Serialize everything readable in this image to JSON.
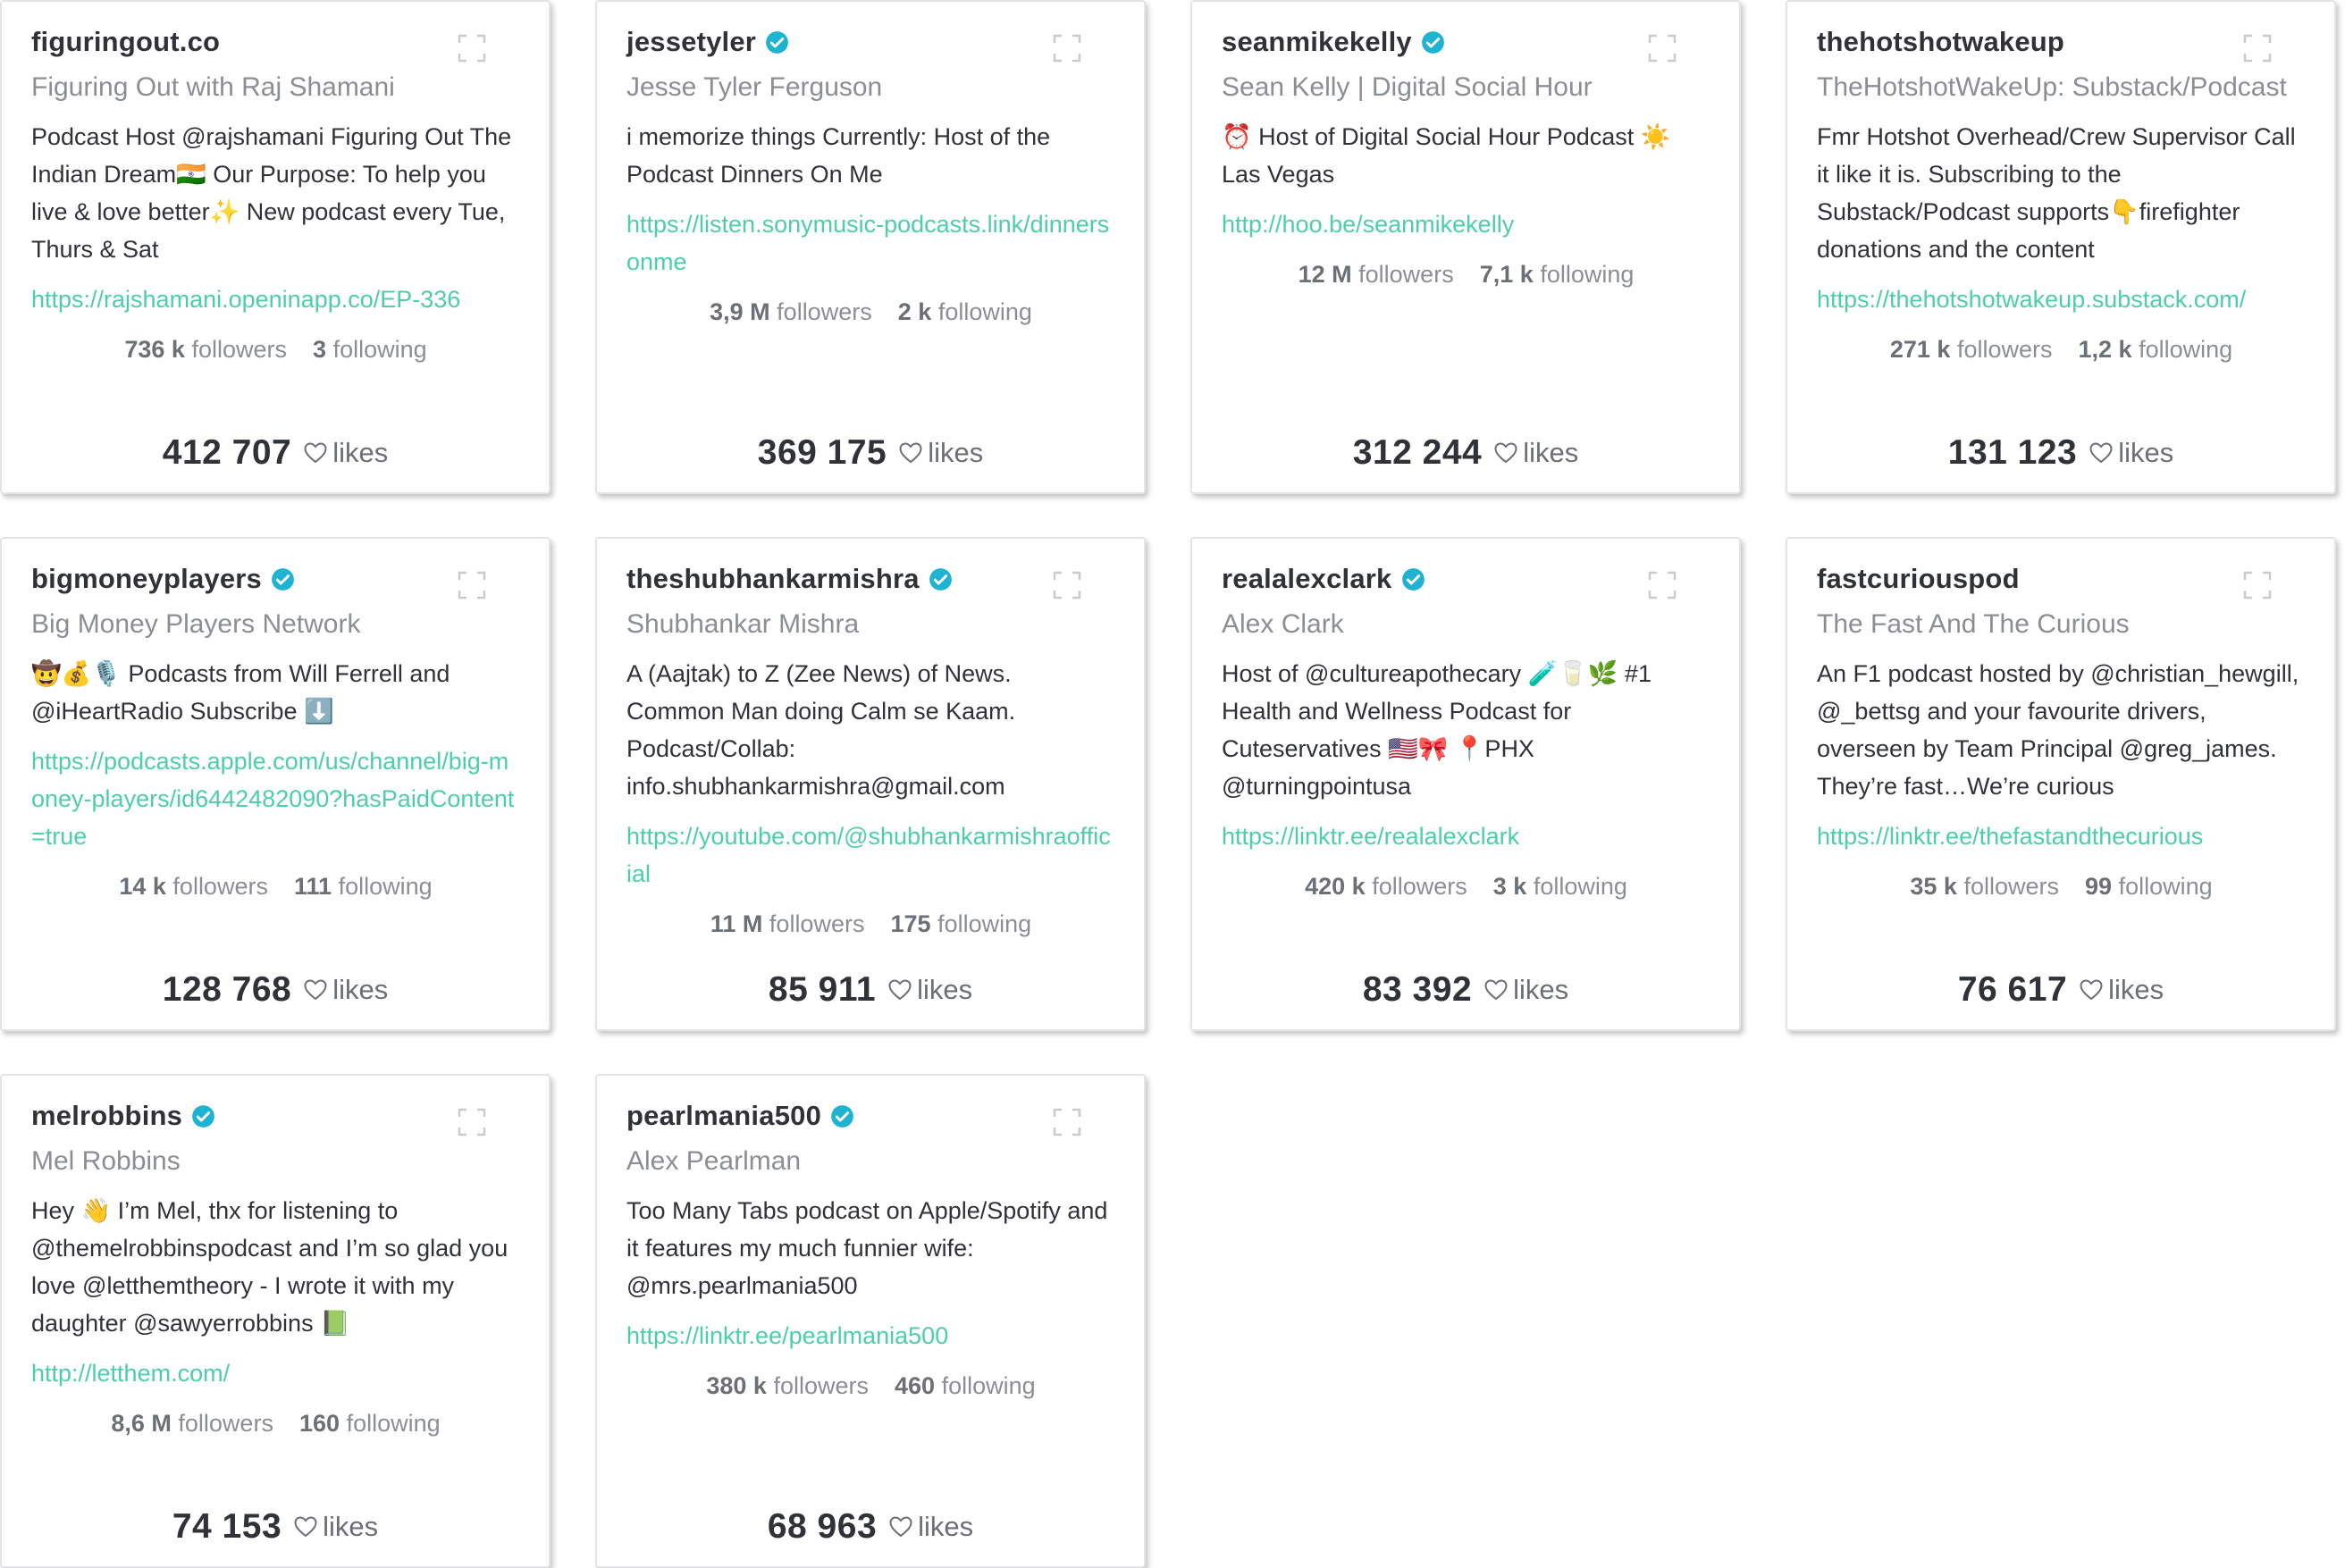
{
  "cards": [
    {
      "handle": "figuringout.co",
      "verified": false,
      "name": "Figuring Out with Raj Shamani",
      "bio": "Podcast Host @rajshamani Figuring Out The Indian Dream🇮🇳 Our Purpose: To help you live & love better✨ New podcast every Tue, Thurs & Sat",
      "link": "https://rajshamani.openinapp.co/EP-336",
      "followers": "736 k",
      "following": "3",
      "likes": "412 707"
    },
    {
      "handle": "jessetyler",
      "verified": true,
      "name": "Jesse Tyler Ferguson",
      "bio": "i memorize things Currently: Host of the Podcast Dinners On Me",
      "link": "https://listen.sonymusic-podcasts.link/dinnersonme",
      "followers": "3,9 M",
      "following": "2 k",
      "likes": "369 175"
    },
    {
      "handle": "seanmikekelly",
      "verified": true,
      "name": "Sean Kelly | Digital Social Hour",
      "bio": "⏰ Host of Digital Social Hour Podcast ☀️ Las Vegas",
      "link": "http://hoo.be/seanmikekelly",
      "followers": "12 M",
      "following": "7,1 k",
      "likes": "312 244"
    },
    {
      "handle": "thehotshotwakeup",
      "verified": false,
      "name": "TheHotshotWakeUp: Substack/Podcast",
      "bio": "Fmr Hotshot Overhead/Crew Supervisor Call it like it is. Subscribing to the Substack/Podcast supports👇firefighter donations and the content",
      "link": "https://thehotshotwakeup.substack.com/",
      "followers": "271 k",
      "following": "1,2 k",
      "likes": "131 123"
    },
    {
      "handle": "bigmoneyplayers",
      "verified": true,
      "name": "Big Money Players Network",
      "bio": "🤠💰🎙️ Podcasts from Will Ferrell and @iHeartRadio Subscribe ⬇️",
      "link": "https://podcasts.apple.com/us/channel/big-money-players/id6442482090?hasPaidContent=true",
      "followers": "14 k",
      "following": "111",
      "likes": "128 768"
    },
    {
      "handle": "theshubhankarmishra",
      "verified": true,
      "name": "Shubhankar Mishra",
      "bio": "A (Aajtak) to Z (Zee News) of News. Common Man doing Calm se Kaam. Podcast/Collab: info.shubhankarmishra@gmail.com",
      "link": "https://youtube.com/@shubhankarmishraofficial",
      "followers": "11 M",
      "following": "175",
      "likes": "85 911"
    },
    {
      "handle": "realalexclark",
      "verified": true,
      "name": "Alex Clark",
      "bio": "Host of @cultureapothecary 🧪🥛🌿 #1 Health and Wellness Podcast for Cuteservatives 🇺🇸🎀 📍PHX @turningpointusa",
      "link": "https://linktr.ee/realalexclark",
      "followers": "420 k",
      "following": "3 k",
      "likes": "83 392"
    },
    {
      "handle": "fastcuriouspod",
      "verified": false,
      "name": "The Fast And The Curious",
      "bio": "An F1 podcast hosted by @christian_hewgill, @_bettsg and your favourite drivers, overseen by Team Principal @greg_james. They’re fast…We’re curious",
      "link": "https://linktr.ee/thefastandthecurious",
      "followers": "35 k",
      "following": "99",
      "likes": "76 617"
    },
    {
      "handle": "melrobbins",
      "verified": true,
      "name": "Mel Robbins",
      "bio": "Hey 👋 I’m Mel, thx for listening to @themelrobbinspodcast and I’m so glad you love @letthemtheory - I wrote it with my daughter @sawyerrobbins 📗",
      "link": "http://letthem.com/",
      "followers": "8,6 M",
      "following": "160",
      "likes": "74 153"
    },
    {
      "handle": "pearlmania500",
      "verified": true,
      "name": "Alex Pearlman",
      "bio": "Too Many Tabs podcast on Apple/Spotify and it features my much funnier wife: @mrs.pearlmania500",
      "link": "https://linktr.ee/pearlmania500",
      "followers": "380 k",
      "following": "460",
      "likes": "68 963"
    }
  ],
  "labels": {
    "followers": "followers",
    "following": "following",
    "likes": "likes"
  },
  "colors": {
    "verified": "#1fb3d2",
    "link": "#4ccfa8"
  },
  "icons": [
    "verified-badge-icon",
    "expand-icon",
    "heart-icon"
  ]
}
